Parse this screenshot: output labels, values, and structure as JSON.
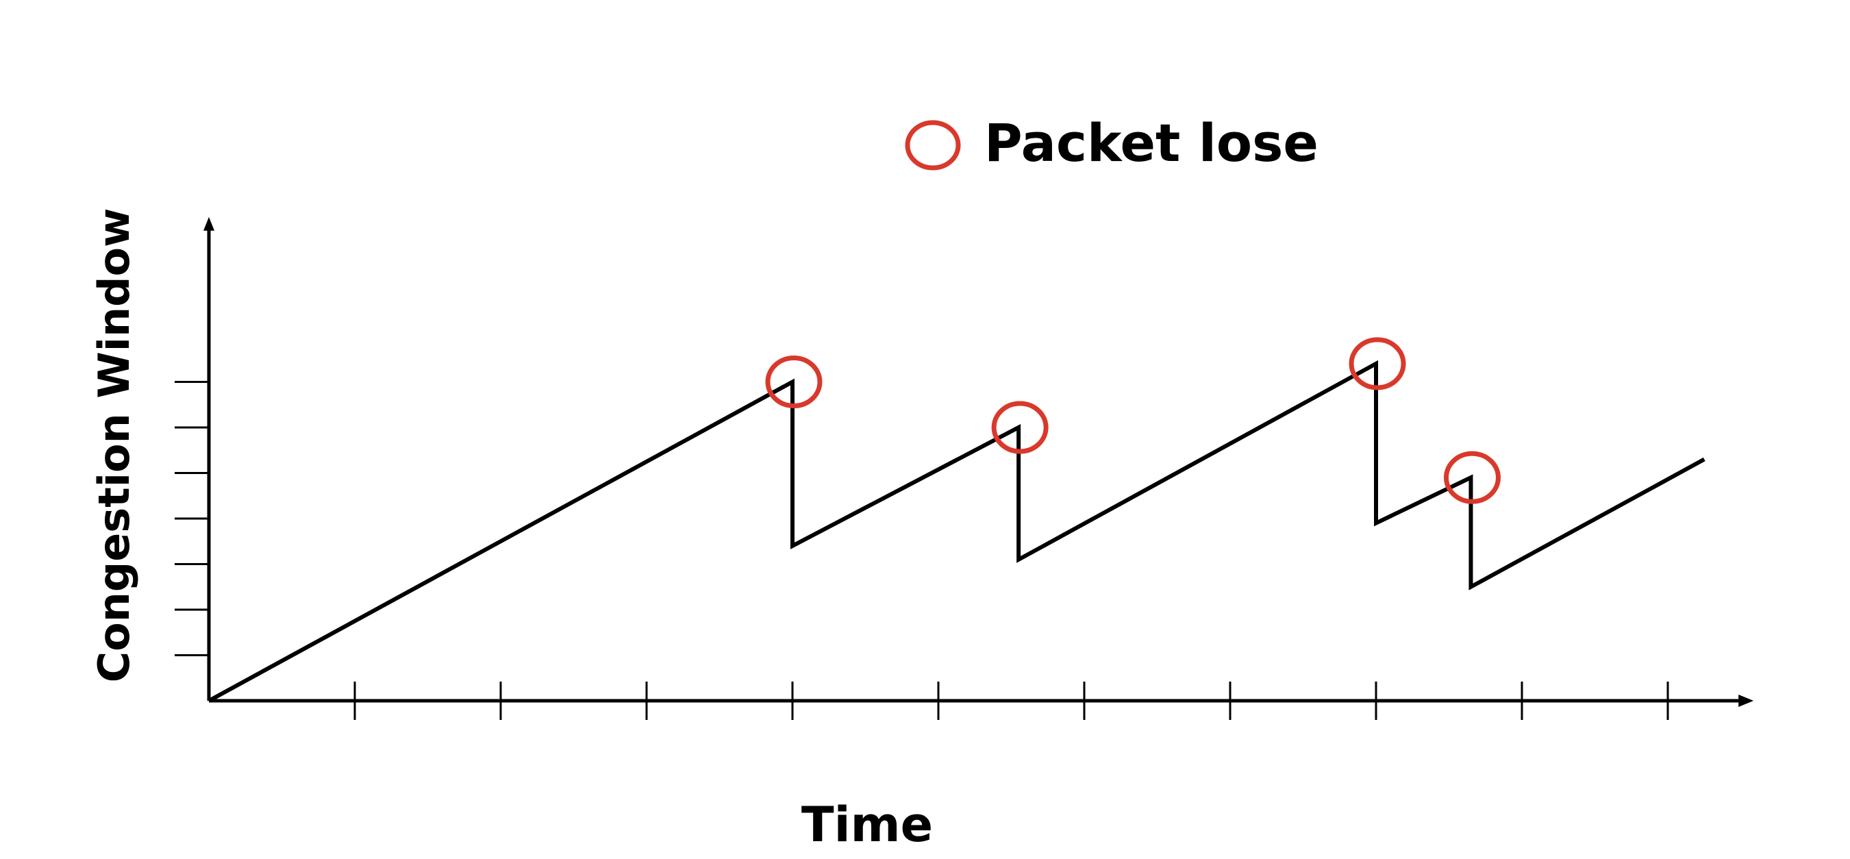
{
  "chart_data": {
    "type": "line",
    "xlabel": "Time",
    "ylabel": "Congestion Window",
    "legend": {
      "label": "Packet lose",
      "marker": "circle",
      "position": "top-center"
    },
    "xlim": [
      0,
      10.4
    ],
    "ylim": [
      0,
      10.5
    ],
    "x_ticks": [
      1,
      2,
      3,
      4,
      5,
      6,
      7,
      8,
      9,
      10
    ],
    "y_ticks": [
      1,
      2,
      3,
      4,
      5,
      6,
      7
    ],
    "grid": false,
    "series": [
      {
        "values": [
          {
            "x": 0,
            "y": 0
          },
          {
            "x": 4,
            "y": 7.0
          },
          {
            "x": 4,
            "y": 3.4
          },
          {
            "x": 5.55,
            "y": 6.0
          },
          {
            "x": 5.55,
            "y": 3.1
          },
          {
            "x": 8,
            "y": 7.4
          },
          {
            "x": 8,
            "y": 3.9
          },
          {
            "x": 8.65,
            "y": 4.9
          },
          {
            "x": 8.65,
            "y": 2.5
          },
          {
            "x": 10.25,
            "y": 5.3
          }
        ]
      }
    ],
    "packet_loss_points": [
      {
        "x": 4,
        "y": 7.0
      },
      {
        "x": 5.55,
        "y": 6.0
      },
      {
        "x": 8,
        "y": 7.4
      },
      {
        "x": 8.65,
        "y": 4.9
      }
    ],
    "colors": {
      "line": "#000000",
      "marker": "#d9392b",
      "axis": "#000000"
    }
  }
}
